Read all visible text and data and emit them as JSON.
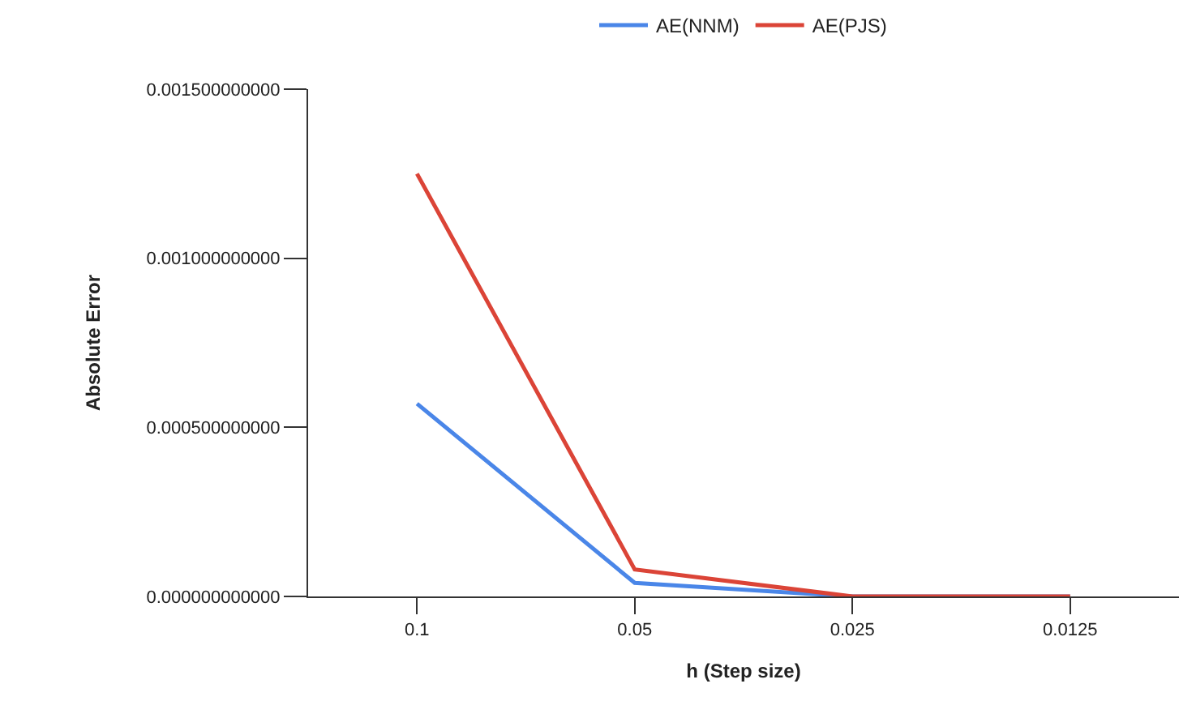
{
  "chart_data": {
    "type": "line",
    "xlabel": "h (Step size)",
    "ylabel": "Absolute Error",
    "categories": [
      "0.1",
      "0.05",
      "0.025",
      "0.0125"
    ],
    "series": [
      {
        "name": "AE(NNM)",
        "color": "#4a86e8",
        "values": [
          0.00057,
          4e-05,
          0,
          0
        ]
      },
      {
        "name": "AE(PJS)",
        "color": "#db4437",
        "values": [
          0.00125,
          8e-05,
          0,
          0
        ]
      }
    ],
    "ylim": [
      0,
      0.0015
    ],
    "yticks": [
      {
        "value": 0,
        "label": "0.000000000000"
      },
      {
        "value": 0.0005,
        "label": "0.000500000000"
      },
      {
        "value": 0.001,
        "label": "0.001000000000"
      },
      {
        "value": 0.0015,
        "label": "0.001500000000"
      }
    ],
    "legend": "top",
    "marker": "none",
    "line_style": "solid"
  }
}
